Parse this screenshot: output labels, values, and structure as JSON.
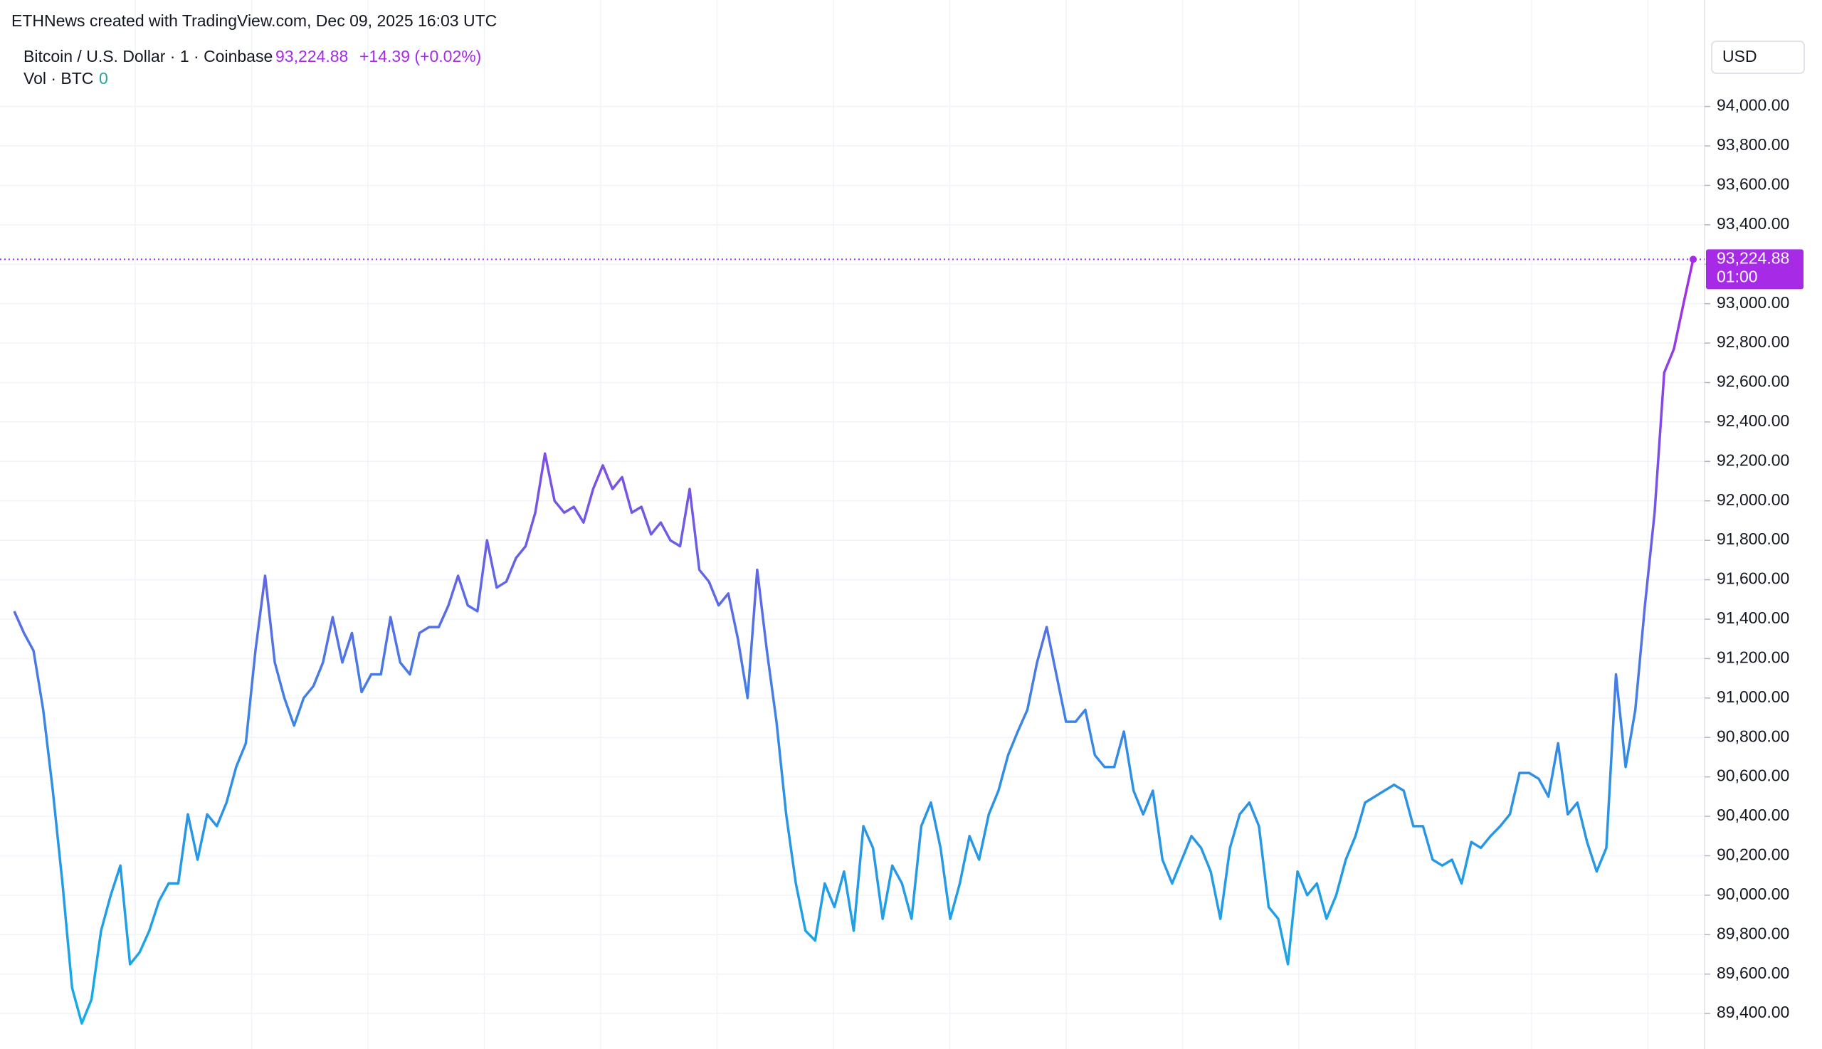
{
  "chart_data": {
    "type": "line",
    "watermark": "ETHNews created with TradingView.com, Dec 09, 2025 16:03 UTC",
    "title": "Bitcoin / U.S. Dollar · 1 · Coinbase",
    "change": "+14.39 (+0.02%)",
    "volume_title": "Vol · BTC",
    "volume_value": 0,
    "currency": "USD",
    "last_price": {
      "value": 93224.88,
      "label": "93,224.88"
    },
    "countdown": "01:00",
    "line_gradient": [
      "#a62ae6",
      "#7457e6",
      "#2f8fe6",
      "#12aee8"
    ],
    "ylim": [
      89220,
      94540
    ],
    "yticks": [
      {
        "value": 89400,
        "label": "89,400.00"
      },
      {
        "value": 89600,
        "label": "89,600.00"
      },
      {
        "value": 89800,
        "label": "89,800.00"
      },
      {
        "value": 90000,
        "label": "90,000.00"
      },
      {
        "value": 90200,
        "label": "90,200.00"
      },
      {
        "value": 90400,
        "label": "90,400.00"
      },
      {
        "value": 90600,
        "label": "90,600.00"
      },
      {
        "value": 90800,
        "label": "90,800.00"
      },
      {
        "value": 91000,
        "label": "91,000.00"
      },
      {
        "value": 91200,
        "label": "91,200.00"
      },
      {
        "value": 91400,
        "label": "91,400.00"
      },
      {
        "value": 91600,
        "label": "91,600.00"
      },
      {
        "value": 91800,
        "label": "91,800.00"
      },
      {
        "value": 92000,
        "label": "92,000.00"
      },
      {
        "value": 92200,
        "label": "92,200.00"
      },
      {
        "value": 92400,
        "label": "92,400.00"
      },
      {
        "value": 92600,
        "label": "92,600.00"
      },
      {
        "value": 92800,
        "label": "92,800.00"
      },
      {
        "value": 93000,
        "label": "93,000.00"
      },
      {
        "value": 93200,
        "label": "93,200.00"
      },
      {
        "value": 93400,
        "label": "93,400.00"
      },
      {
        "value": 93600,
        "label": "93,600.00"
      },
      {
        "value": 93800,
        "label": "93,800.00"
      },
      {
        "value": 94000,
        "label": "94,000.00"
      }
    ],
    "grid": true,
    "values": [
      91440,
      91330,
      91240,
      90940,
      90530,
      90060,
      89530,
      89350,
      89470,
      89820,
      90000,
      90150,
      89650,
      89710,
      89820,
      89970,
      90060,
      90060,
      90410,
      90180,
      90410,
      90350,
      90470,
      90650,
      90770,
      91240,
      91620,
      91180,
      91000,
      90860,
      91000,
      91060,
      91180,
      91410,
      91180,
      91330,
      91030,
      91120,
      91120,
      91410,
      91180,
      91120,
      91330,
      91360,
      91360,
      91470,
      91620,
      91470,
      91440,
      91800,
      91560,
      91590,
      91710,
      91770,
      91940,
      92240,
      92000,
      91940,
      91970,
      91890,
      92060,
      92180,
      92060,
      92120,
      91940,
      91970,
      91830,
      91890,
      91800,
      91770,
      92060,
      91650,
      91590,
      91470,
      91530,
      91300,
      91000,
      91650,
      91240,
      90880,
      90410,
      90060,
      89820,
      89770,
      90060,
      89940,
      90120,
      89820,
      90350,
      90240,
      89880,
      90150,
      90060,
      89880,
      90350,
      90470,
      90240,
      89880,
      90060,
      90300,
      90180,
      90410,
      90530,
      90710,
      90830,
      90940,
      91180,
      91360,
      91120,
      90880,
      90880,
      90940,
      90710,
      90650,
      90650,
      90830,
      90530,
      90410,
      90530,
      90180,
      90060,
      90180,
      90300,
      90240,
      90120,
      89880,
      90240,
      90410,
      90470,
      90350,
      89940,
      89880,
      89650,
      90120,
      90000,
      90060,
      89880,
      90000,
      90180,
      90300,
      90470,
      90500,
      90530,
      90560,
      90530,
      90350,
      90350,
      90180,
      90150,
      90180,
      90060,
      90270,
      90240,
      90300,
      90350,
      90410,
      90620,
      90620,
      90590,
      90500,
      90770,
      90410,
      90470,
      90270,
      90120,
      90240,
      91120,
      90650,
      90940,
      91470,
      91940,
      92650,
      92770,
      93000,
      93224.88
    ]
  }
}
